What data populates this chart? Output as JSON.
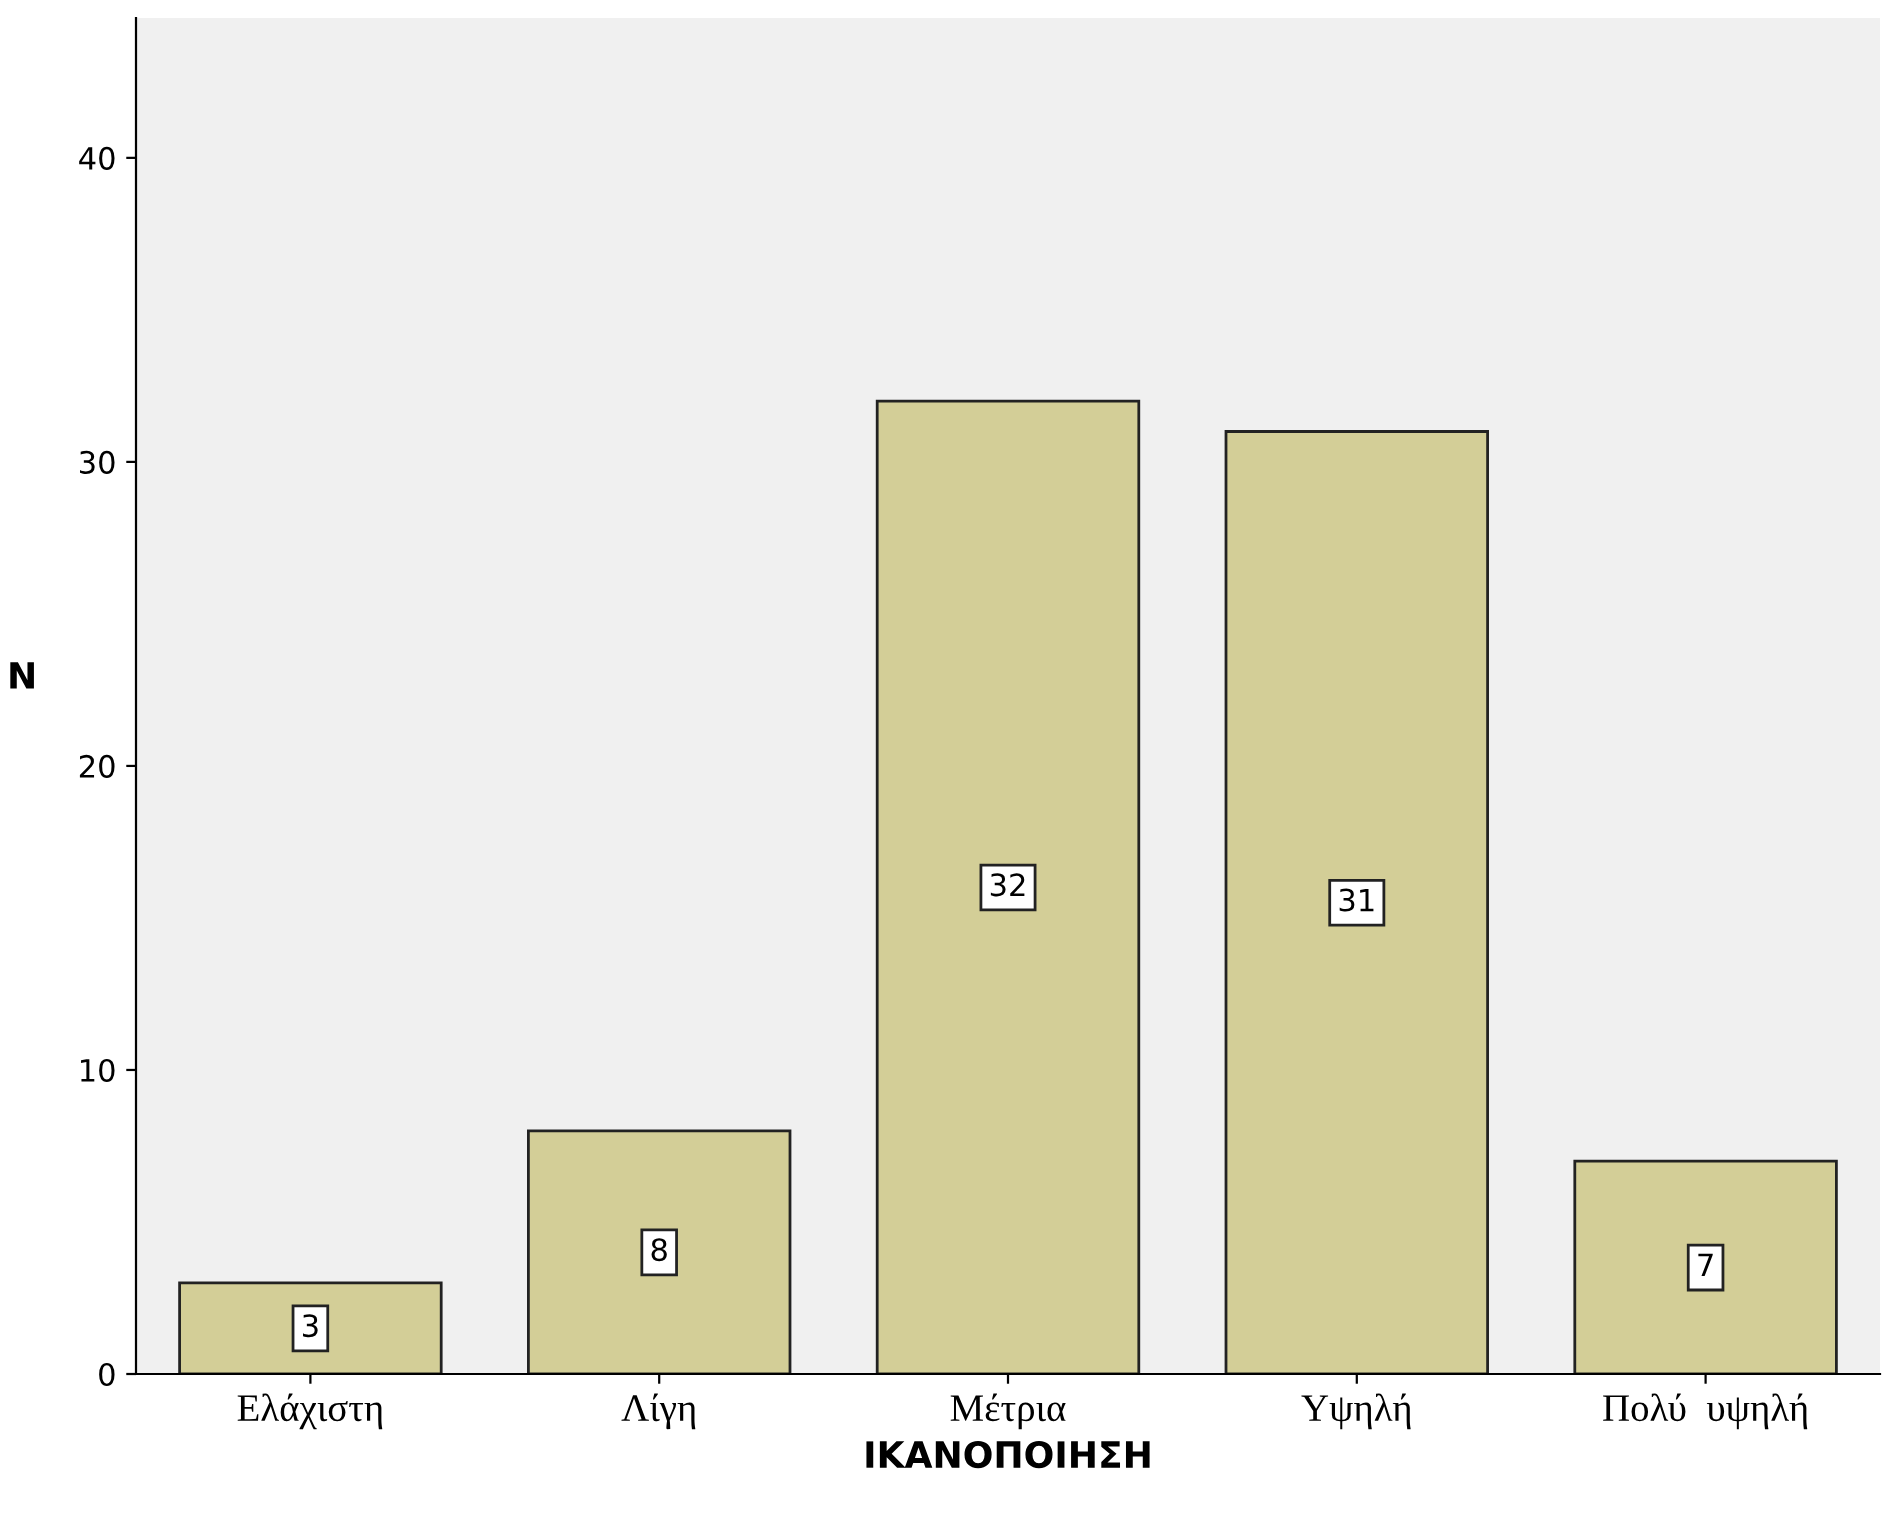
{
  "chart_data": {
    "type": "bar",
    "xlabel": "ΙΚΑΝΟΠΟΙΗΣΗ",
    "ylabel": "N",
    "categories": [
      "Ελάχιστη",
      "Λίγη",
      "Μέτρια",
      "Υψηλή",
      "Πολύ  υψηλή"
    ],
    "values": [
      3,
      8,
      32,
      31,
      7
    ],
    "color": "#d3ce97",
    "ylim": [
      0,
      44.6
    ],
    "yticks": [
      0,
      10,
      20,
      30,
      40
    ],
    "grid": false,
    "data_labels": true
  }
}
